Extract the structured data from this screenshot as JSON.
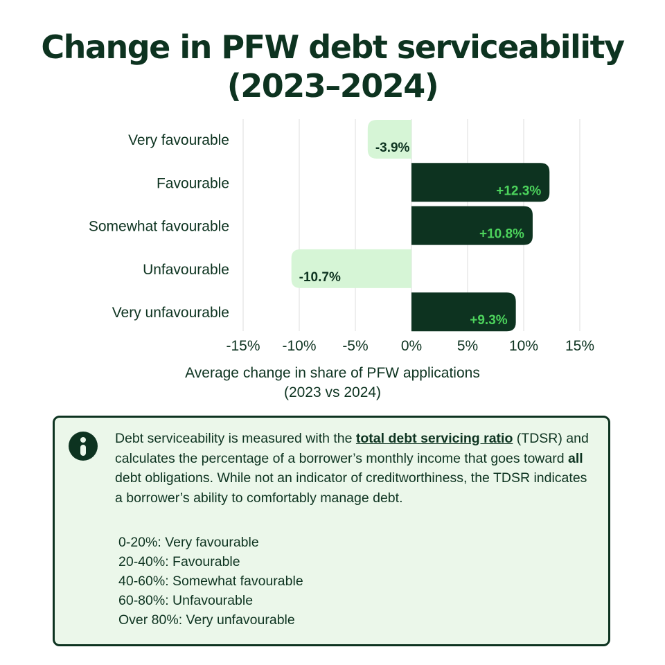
{
  "title": {
    "line1": "Change in PFW debt serviceability",
    "line2": "(2023–2024)"
  },
  "chart_data": {
    "type": "bar",
    "orientation": "horizontal",
    "categories": [
      "Very favourable",
      "Favourable",
      "Somewhat favourable",
      "Unfavourable",
      "Very unfavourable"
    ],
    "values": [
      -3.9,
      12.3,
      10.8,
      -10.7,
      9.3
    ],
    "value_labels": [
      "-3.9%",
      "+12.3%",
      "+10.8%",
      "-10.7%",
      "+9.3%"
    ],
    "xlim": [
      -15,
      15
    ],
    "xticks": [
      -15,
      -10,
      -5,
      0,
      5,
      10,
      15
    ],
    "xtick_labels": [
      "-15%",
      "-10%",
      "-5%",
      "0%",
      "5%",
      "10%",
      "15%"
    ],
    "xlabel_line1": "Average change in share of PFW applications",
    "xlabel_line2": "(2023 vs 2024)",
    "grid": "vertical",
    "colors": {
      "positive_bar": "#0d3320",
      "negative_bar": "#d6f5d6",
      "positive_label": "#4cd35c",
      "negative_label": "#0d3320",
      "grid": "#dddddd"
    }
  },
  "info": {
    "icon": "info-icon",
    "text_before_link": "Debt serviceability is measured with the ",
    "link_text": "total debt servicing ratio",
    "text_after_link": " (TDSR) and calculates the percentage of a borrower’s monthly income that goes toward ",
    "bold_word": "all",
    "text_end": " debt obligations. While not an indicator of creditworthiness, the TDSR indicates a borrower’s ability to comfortably manage debt.",
    "scale": [
      "0-20%: Very favourable",
      "20-40%: Favourable",
      "40-60%: Somewhat favourable",
      "60-80%: Unfavourable",
      "Over 80%: Very unfavourable"
    ]
  }
}
